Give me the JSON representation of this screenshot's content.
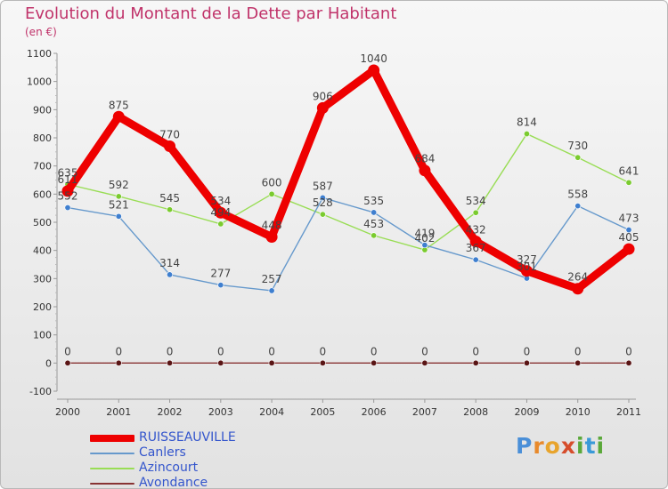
{
  "title": "Evolution du Montant de la Dette par Habitant",
  "subtitle": "(en €)",
  "logo": {
    "letters": [
      "P",
      "r",
      "o",
      "x",
      "i",
      "t",
      "i"
    ],
    "colors": [
      "#4a8fd8",
      "#e88a2c",
      "#e8a42c",
      "#d64d2c",
      "#5aa83a",
      "#3a9ad8",
      "#5aa83a"
    ]
  },
  "chart_data": {
    "type": "line",
    "title": "Evolution du Montant de la Dette par Habitant",
    "subtitle": "(en €)",
    "x": [
      2000,
      2001,
      2002,
      2003,
      2004,
      2005,
      2006,
      2007,
      2008,
      2009,
      2010,
      2011
    ],
    "xlim": [
      2000,
      2011
    ],
    "ylim": [
      -100,
      1100
    ],
    "yticks": [
      -100,
      0,
      100,
      200,
      300,
      400,
      500,
      600,
      700,
      800,
      900,
      1000,
      1100
    ],
    "grid": false,
    "legend": "bottom-left",
    "series": [
      {
        "name": "RUISSEAUVILLE",
        "color": "#ee0000",
        "values": [
          611,
          875,
          770,
          534,
          448,
          906,
          1040,
          684,
          432,
          327,
          264,
          405
        ]
      },
      {
        "name": "Canlers",
        "color": "#6699cc",
        "values": [
          552,
          521,
          314,
          277,
          257,
          587,
          535,
          419,
          367,
          301,
          558,
          473
        ]
      },
      {
        "name": "Azincourt",
        "color": "#99dd55",
        "values": [
          635,
          592,
          545,
          494,
          600,
          528,
          453,
          402,
          534,
          814,
          730,
          641
        ]
      },
      {
        "name": "Avondance",
        "color": "#883333",
        "values": [
          0,
          0,
          0,
          0,
          0,
          0,
          0,
          0,
          0,
          0,
          0,
          0
        ]
      }
    ]
  }
}
